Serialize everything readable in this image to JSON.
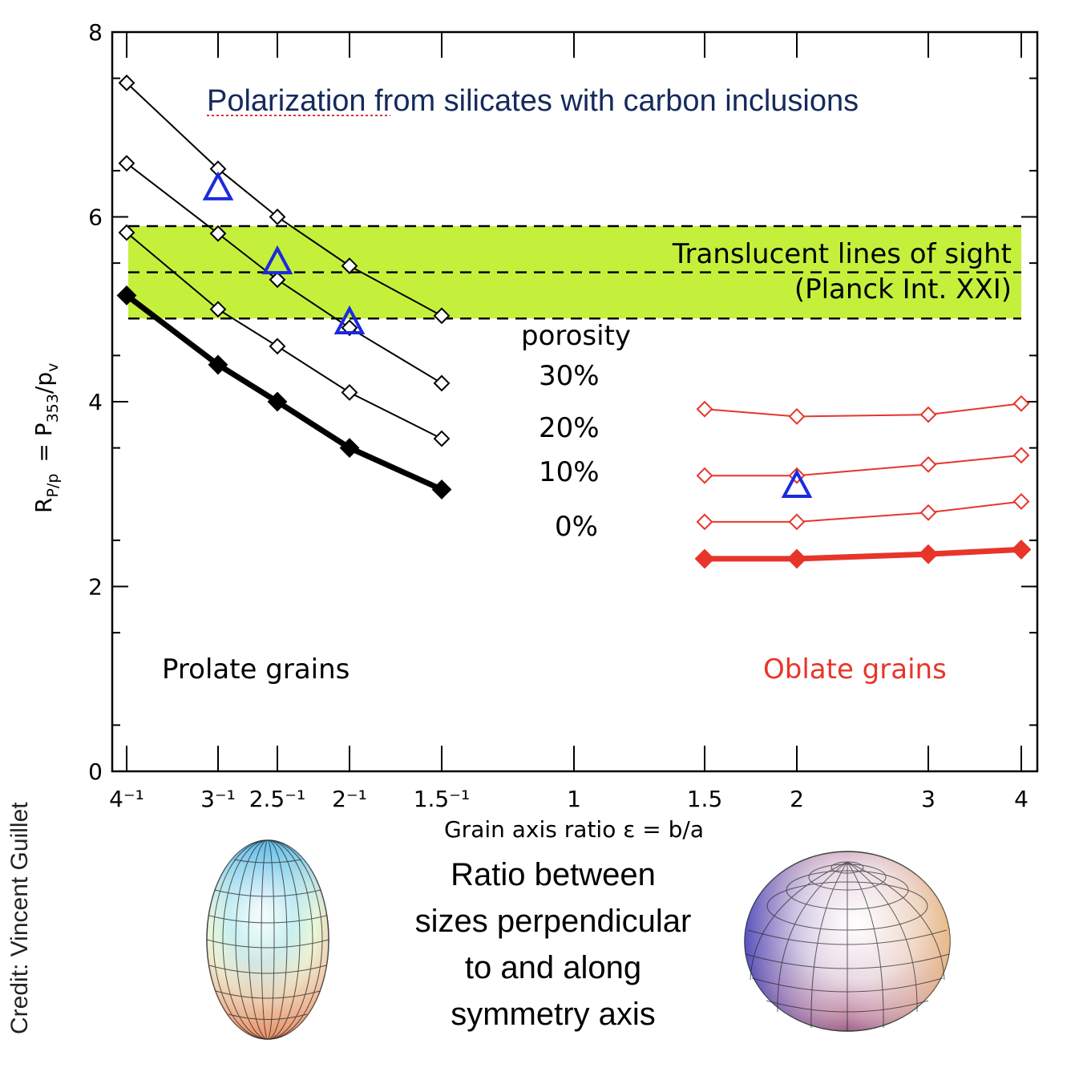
{
  "chart_data": {
    "type": "line",
    "title": "Polarization from silicates with carbon inclusions",
    "xlabel": "Grain axis ratio ε = b/a",
    "ylabel": "R",
    "ylabel_sub": "P/p",
    "ylabel_rhs": "= P",
    "ylabel_rhs_sub": "353",
    "ylabel_den": "/p",
    "ylabel_den_sub": "v",
    "ylim": [
      0,
      8
    ],
    "y_ticks": [
      0,
      2,
      4,
      6,
      8
    ],
    "x_ticks": [
      {
        "value": 0.25,
        "label": "4⁻¹"
      },
      {
        "value": 0.3333,
        "label": "3⁻¹"
      },
      {
        "value": 0.4,
        "label": "2.5⁻¹"
      },
      {
        "value": 0.5,
        "label": "2⁻¹"
      },
      {
        "value": 0.6667,
        "label": "1.5⁻¹"
      },
      {
        "value": 1,
        "label": "1"
      },
      {
        "value": 1.5,
        "label": "1.5"
      },
      {
        "value": 2,
        "label": "2"
      },
      {
        "value": 3,
        "label": "3"
      },
      {
        "value": 4,
        "label": "4"
      }
    ],
    "band": {
      "y_range": [
        4.9,
        5.9
      ],
      "dashed_lines": [
        4.9,
        5.4,
        5.9
      ],
      "color": "#c4f03c",
      "label_line1": "Translucent lines of sight",
      "label_line2": "(Planck Int. XXI)"
    },
    "annotations": {
      "porosity": "porosity",
      "p30": "30%",
      "p20": "20%",
      "p10": "10%",
      "p0": "0%",
      "prolate": "Prolate grains",
      "oblate": "Oblate grains"
    },
    "series": [
      {
        "group": "prolate",
        "porosity": "30%",
        "color": "#000000",
        "bold": false,
        "x": [
          0.25,
          0.3333,
          0.4,
          0.5,
          0.6667
        ],
        "y": [
          7.45,
          6.52,
          6.0,
          5.47,
          4.93
        ]
      },
      {
        "group": "prolate",
        "porosity": "20%",
        "color": "#000000",
        "bold": false,
        "x": [
          0.25,
          0.3333,
          0.4,
          0.5,
          0.6667
        ],
        "y": [
          6.58,
          5.82,
          5.32,
          4.8,
          4.2
        ]
      },
      {
        "group": "prolate",
        "porosity": "10%",
        "color": "#000000",
        "bold": false,
        "x": [
          0.25,
          0.3333,
          0.4,
          0.5,
          0.6667
        ],
        "y": [
          5.83,
          5.0,
          4.6,
          4.1,
          3.6
        ]
      },
      {
        "group": "prolate",
        "porosity": "0%",
        "color": "#000000",
        "bold": true,
        "x": [
          0.25,
          0.3333,
          0.4,
          0.5,
          0.6667
        ],
        "y": [
          5.15,
          4.4,
          4.0,
          3.5,
          3.05
        ]
      },
      {
        "group": "oblate",
        "porosity": "30%",
        "color": "#e8352a",
        "bold": false,
        "x": [
          1.5,
          2,
          3,
          4
        ],
        "y": [
          3.92,
          3.84,
          3.86,
          3.98
        ]
      },
      {
        "group": "oblate",
        "porosity": "20%",
        "color": "#e8352a",
        "bold": false,
        "x": [
          1.5,
          2,
          3,
          4
        ],
        "y": [
          3.2,
          3.2,
          3.32,
          3.42
        ]
      },
      {
        "group": "oblate",
        "porosity": "10%",
        "color": "#e8352a",
        "bold": false,
        "x": [
          1.5,
          2,
          3,
          4
        ],
        "y": [
          2.7,
          2.7,
          2.8,
          2.92
        ]
      },
      {
        "group": "oblate",
        "porosity": "0%",
        "color": "#e8352a",
        "bold": true,
        "x": [
          1.5,
          2,
          3,
          4
        ],
        "y": [
          2.3,
          2.3,
          2.35,
          2.4
        ]
      }
    ],
    "triangles": {
      "color": "#1b2ae0",
      "points": [
        {
          "x": 0.3333,
          "y": 6.3
        },
        {
          "x": 0.4,
          "y": 5.5
        },
        {
          "x": 0.5,
          "y": 4.85
        },
        {
          "x": 2,
          "y": 3.08
        }
      ]
    }
  },
  "caption": {
    "line1": "Ratio between",
    "line2": "sizes perpendicular",
    "line3": "to and along",
    "line4": "symmetry axis"
  },
  "credit": "Credit: Vincent Guillet"
}
